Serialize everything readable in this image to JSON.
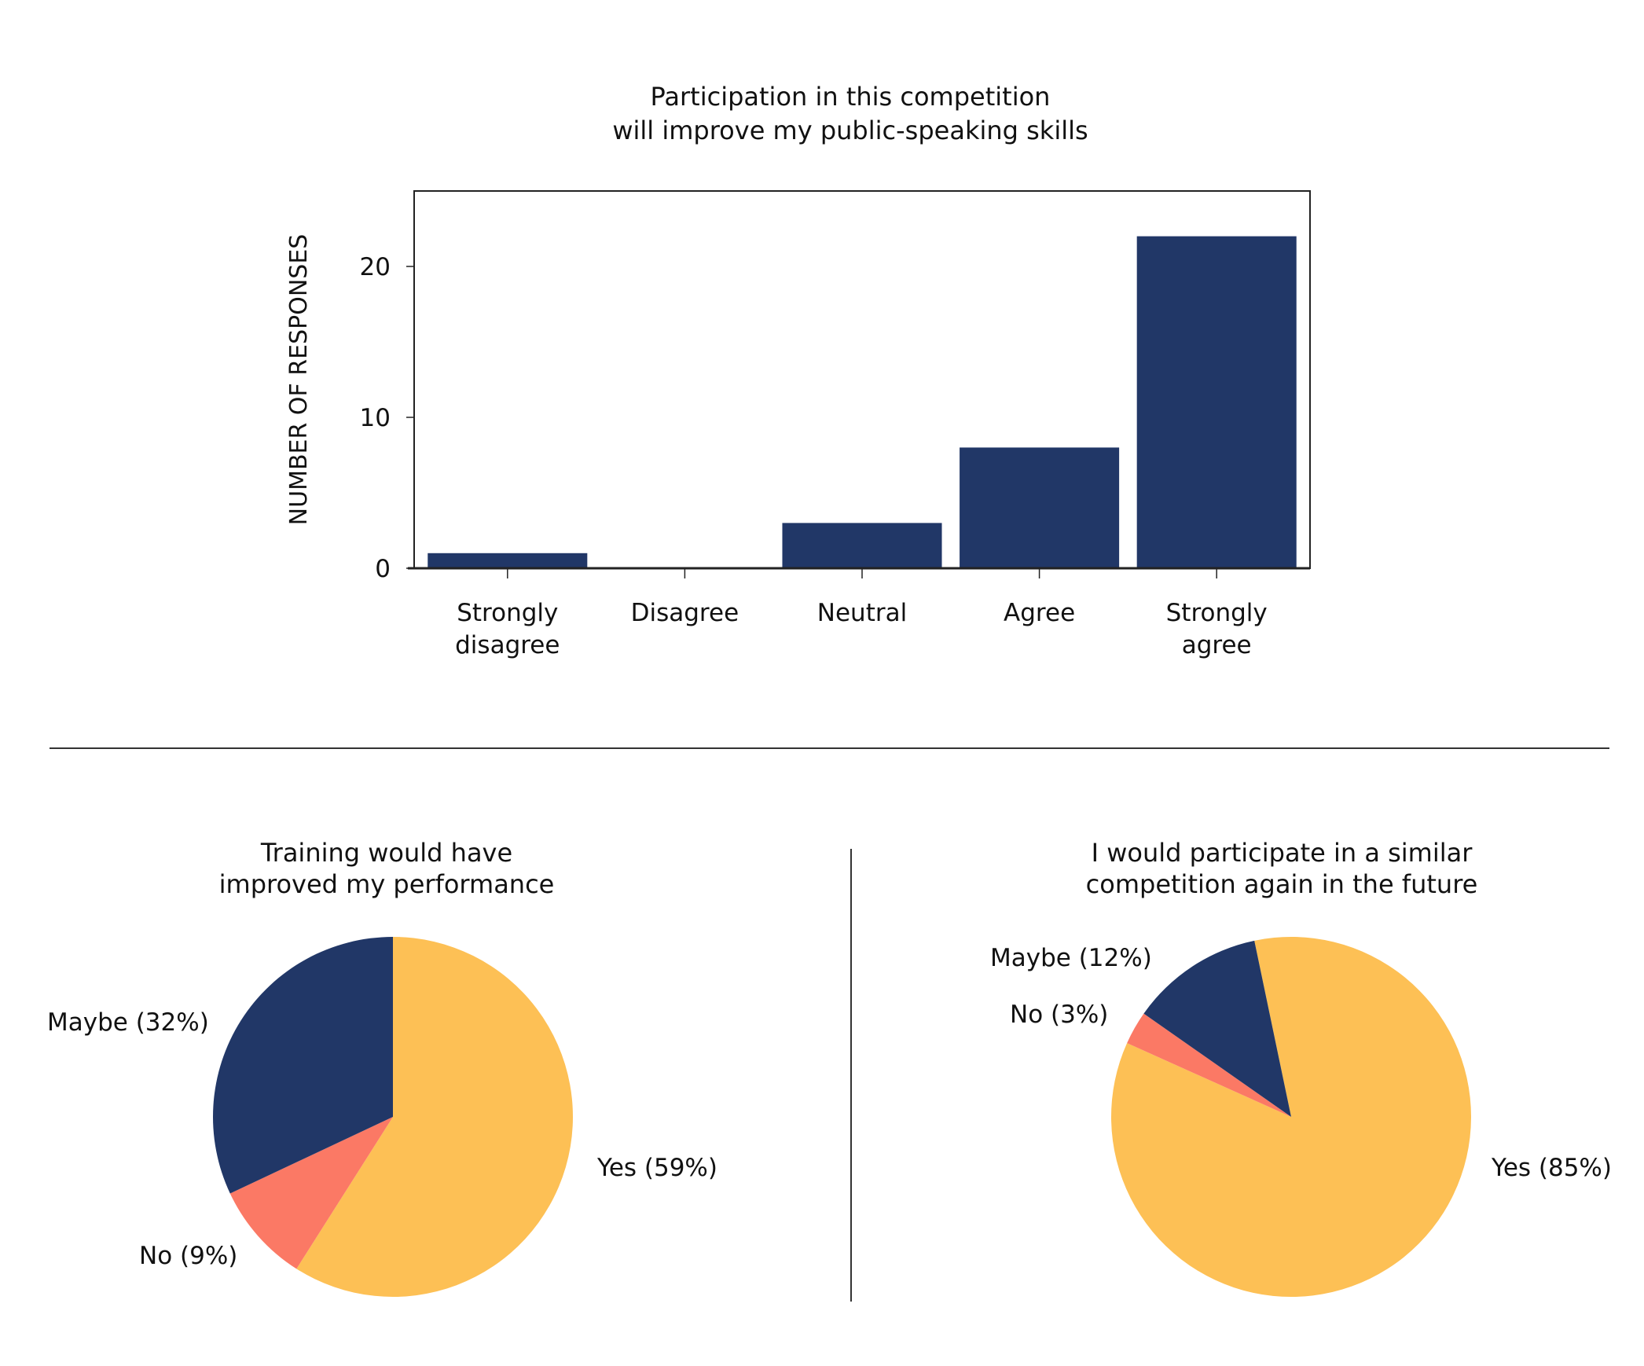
{
  "colors": {
    "navy": "#213767",
    "yellow": "#fdc055",
    "coral": "#fb7965",
    "axis": "#222222"
  },
  "chart_data": [
    {
      "type": "bar",
      "title": [
        "Participation in this competition",
        "will improve my public-speaking skills"
      ],
      "ylabel": "NUMBER OF RESPONSES",
      "xlabel": "",
      "categories": [
        [
          "Strongly",
          "disagree"
        ],
        [
          "Disagree"
        ],
        [
          "Neutral"
        ],
        [
          "Agree"
        ],
        [
          "Strongly",
          "agree"
        ]
      ],
      "values": [
        1,
        0,
        3,
        8,
        22
      ],
      "ylim": [
        0,
        25
      ],
      "yticks": [
        0,
        10,
        20
      ],
      "grid": false
    },
    {
      "type": "pie",
      "title": [
        "Training would have",
        "improved my performance"
      ],
      "slices": [
        {
          "label": "Yes (59%)",
          "value": 59,
          "color": "#fdc055"
        },
        {
          "label": "No (9%)",
          "value": 9,
          "color": "#fb7965"
        },
        {
          "label": "Maybe (32%)",
          "value": 32,
          "color": "#213767"
        }
      ]
    },
    {
      "type": "pie",
      "title": [
        "I would participate in a similar",
        "competition again in the future"
      ],
      "slices": [
        {
          "label": "Yes (85%)",
          "value": 85,
          "color": "#fdc055"
        },
        {
          "label": "No (3%)",
          "value": 3,
          "color": "#fb7965"
        },
        {
          "label": "Maybe (12%)",
          "value": 12,
          "color": "#213767"
        }
      ]
    }
  ]
}
